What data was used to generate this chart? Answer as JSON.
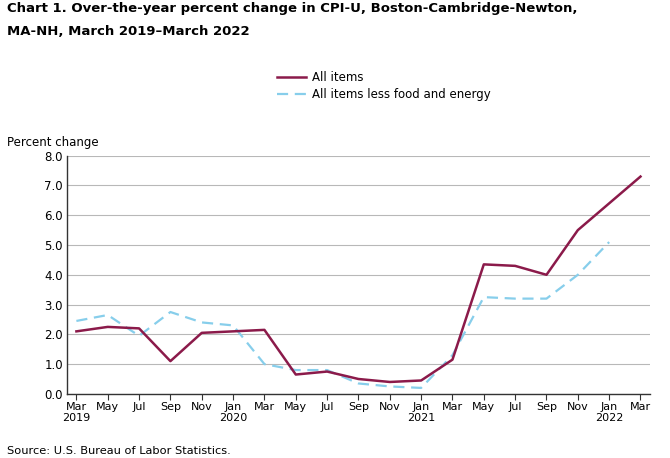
{
  "title_line1": "Chart 1. Over-the-year percent change in CPI-U, Boston-Cambridge-Newton,",
  "title_line2": "MA-NH, March 2019–March 2022",
  "ylabel": "Percent change",
  "source": "Source: U.S. Bureau of Labor Statistics.",
  "ylim": [
    0.0,
    8.0
  ],
  "yticks": [
    0.0,
    1.0,
    2.0,
    3.0,
    4.0,
    5.0,
    6.0,
    7.0,
    8.0
  ],
  "x_labels": [
    "Mar\n2019",
    "May",
    "Jul",
    "Sep",
    "Nov",
    "Jan\n2020",
    "Mar",
    "May",
    "Jul",
    "Sep",
    "Nov",
    "Jan\n2021",
    "Mar",
    "May",
    "Jul",
    "Sep",
    "Nov",
    "Jan\n2022",
    "Mar"
  ],
  "all_items": [
    2.1,
    2.25,
    2.2,
    1.1,
    2.05,
    2.1,
    2.15,
    0.65,
    0.75,
    0.5,
    0.4,
    0.45,
    1.15,
    4.35,
    4.3,
    4.0,
    5.5,
    6.4,
    7.3
  ],
  "all_items_less": [
    2.45,
    2.65,
    1.95,
    2.75,
    2.4,
    2.3,
    1.0,
    0.8,
    0.8,
    0.35,
    0.25,
    0.2,
    1.3,
    3.25,
    3.2,
    3.2,
    4.0,
    5.1,
    null
  ],
  "line1_color": "#8B1A4A",
  "line2_color": "#87CEEB",
  "line1_label": "All items",
  "line2_label": "All items less food and energy",
  "background_color": "#ffffff",
  "grid_color": "#b8b8b8"
}
